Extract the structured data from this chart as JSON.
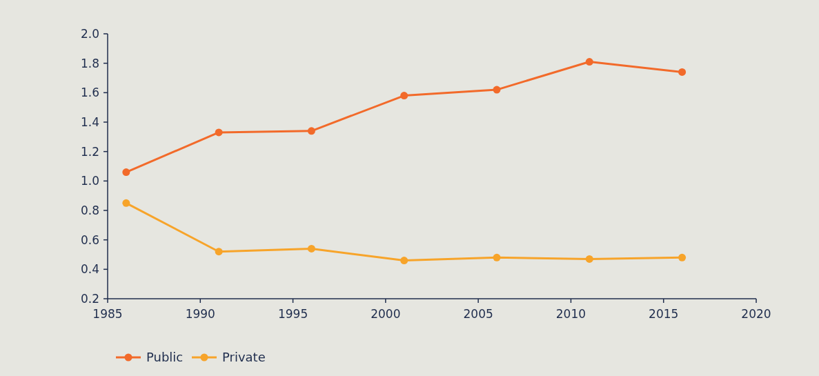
{
  "chart_data": {
    "type": "line",
    "x": [
      1986,
      1991,
      1996,
      2001,
      2006,
      2011,
      2016
    ],
    "series": [
      {
        "name": "Public",
        "color": "#f26a2a",
        "values": [
          1.06,
          1.33,
          1.34,
          1.58,
          1.62,
          1.81,
          1.74
        ]
      },
      {
        "name": "Private",
        "color": "#f7a42a",
        "values": [
          0.85,
          0.52,
          0.54,
          0.46,
          0.48,
          0.47,
          0.48
        ]
      }
    ],
    "xlim": [
      1985,
      2020
    ],
    "xticks": [
      1985,
      1990,
      1995,
      2000,
      2005,
      2010,
      2015,
      2020
    ],
    "ylim": [
      0.2,
      2.0
    ],
    "yticks": [
      {
        "value": 0.2,
        "label": "0.2"
      },
      {
        "value": 0.4,
        "label": "0.4"
      },
      {
        "value": 0.6,
        "label": "0.6"
      },
      {
        "value": 0.8,
        "label": "0.8"
      },
      {
        "value": 1.0,
        "label": "1.0"
      },
      {
        "value": 1.2,
        "label": "1.2"
      },
      {
        "value": 1.4,
        "label": "1.4"
      },
      {
        "value": 1.6,
        "label": "1.6"
      },
      {
        "value": 1.8,
        "label": "1.8"
      },
      {
        "value": 2.0,
        "label": "2.0"
      }
    ],
    "grid": false,
    "legend": "bottom left",
    "marker": "circle",
    "line_style": "solid"
  }
}
